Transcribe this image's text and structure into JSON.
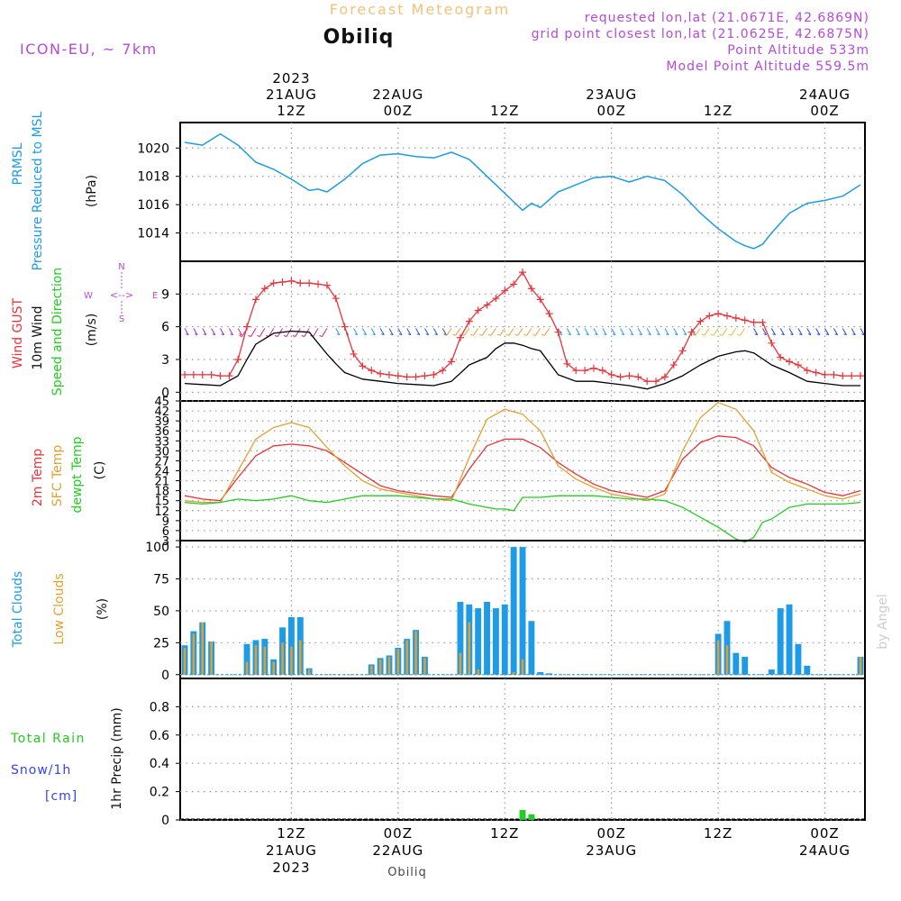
{
  "header": {
    "product_title": "Forecast Meteogram",
    "model": "ICON-EU, ~ 7km",
    "location": "Obiliq",
    "requested": "requested lon,lat (21.0671E, 42.6869N)",
    "grid_point": "grid point closest lon,lat (21.0625E, 42.6875N)",
    "point_altitude": "Point Altitude 533m",
    "model_point_altitude": "Model Point Altitude 559.5m"
  },
  "footer": {
    "location": "Obiliq",
    "credit": "by Angel"
  },
  "colors": {
    "pressure": "#1e9be6",
    "gust": "#e8333b",
    "wind": "#000000",
    "temp2m": "#e8333b",
    "sfc": "#e0a030",
    "dewpt": "#22cc22",
    "total_clouds": "#1e9be6",
    "low_clouds": "#e0a030",
    "rain": "#22cc22",
    "snow": "#3344ee",
    "header_purple": "#b44bd6",
    "title_orange": "#f0c27a"
  },
  "time_axis": {
    "start": "2023-08-21 00Z",
    "end": "2023-08-24 06Z",
    "step_hours": 1,
    "ticks_top": [
      {
        "hour": 12,
        "lines": [
          "2023",
          "21AUG",
          "12Z"
        ]
      },
      {
        "hour": 24,
        "lines": [
          "22AUG",
          "00Z"
        ]
      },
      {
        "hour": 36,
        "lines": [
          "12Z"
        ]
      },
      {
        "hour": 48,
        "lines": [
          "23AUG",
          "00Z"
        ]
      },
      {
        "hour": 60,
        "lines": [
          "12Z"
        ]
      },
      {
        "hour": 72,
        "lines": [
          "24AUG",
          "00Z"
        ]
      }
    ],
    "ticks_bottom": [
      {
        "hour": 12,
        "lines": [
          "12Z",
          "21AUG",
          "2023"
        ]
      },
      {
        "hour": 24,
        "lines": [
          "00Z",
          "22AUG"
        ]
      },
      {
        "hour": 36,
        "lines": [
          "12Z"
        ]
      },
      {
        "hour": 48,
        "lines": [
          "00Z",
          "23AUG"
        ]
      },
      {
        "hour": 60,
        "lines": [
          "12Z"
        ]
      },
      {
        "hour": 72,
        "lines": [
          "00Z",
          "24AUG"
        ]
      }
    ]
  },
  "chart_data": [
    {
      "type": "line",
      "panel": "pressure",
      "ylabels": [
        "PRMSL",
        "Pressure Reduced to MSL",
        "(hPa)"
      ],
      "yticks": [
        1014,
        1016,
        1018,
        1020
      ],
      "ylim": [
        1012.0,
        1021.8
      ],
      "grid": true,
      "series": [
        {
          "name": "PRMSL",
          "x": [
            0,
            2,
            4,
            6,
            8,
            10,
            12,
            13,
            14,
            15,
            16,
            18,
            20,
            22,
            24,
            26,
            28,
            30,
            32,
            34,
            36,
            37,
            38,
            39,
            40,
            42,
            44,
            46,
            48,
            50,
            52,
            54,
            56,
            58,
            60,
            62,
            63,
            64,
            65,
            66,
            68,
            70,
            72,
            74,
            76
          ],
          "values": [
            1020.4,
            1020.2,
            1021.0,
            1020.2,
            1019.0,
            1018.5,
            1017.8,
            1017.4,
            1017.0,
            1017.1,
            1016.9,
            1017.8,
            1018.9,
            1019.5,
            1019.6,
            1019.4,
            1019.3,
            1019.7,
            1019.2,
            1018.0,
            1016.8,
            1016.2,
            1015.6,
            1016.1,
            1015.8,
            1016.9,
            1017.4,
            1017.9,
            1018.0,
            1017.6,
            1018.0,
            1017.7,
            1016.7,
            1015.4,
            1014.3,
            1013.4,
            1013.1,
            1012.9,
            1013.2,
            1014.0,
            1015.4,
            1016.1,
            1016.3,
            1016.6,
            1017.4
          ]
        }
      ]
    },
    {
      "type": "line",
      "panel": "wind",
      "ylabels": [
        "Wind GUST",
        "10m Wind",
        "Speed and Direction",
        "(m/s)"
      ],
      "compass": [
        "N",
        "W",
        "E",
        "S"
      ],
      "yticks": [
        0,
        3,
        6,
        9
      ],
      "ylim": [
        -0.8,
        12
      ],
      "grid": true,
      "series": [
        {
          "name": "Wind GUST",
          "x": [
            0,
            1,
            2,
            3,
            4,
            5,
            6,
            7,
            8,
            9,
            10,
            11,
            12,
            13,
            14,
            15,
            16,
            17,
            18,
            19,
            20,
            21,
            22,
            23,
            24,
            25,
            26,
            27,
            28,
            29,
            30,
            31,
            32,
            33,
            34,
            35,
            36,
            37,
            38,
            39,
            40,
            41,
            42,
            43,
            44,
            45,
            46,
            47,
            48,
            49,
            50,
            51,
            52,
            53,
            54,
            55,
            56,
            57,
            58,
            59,
            60,
            61,
            62,
            63,
            64,
            65,
            66,
            67,
            68,
            69,
            70,
            71,
            72,
            73,
            74,
            75,
            76
          ],
          "values": [
            1.6,
            1.6,
            1.6,
            1.6,
            1.5,
            1.5,
            3.0,
            6.0,
            8.5,
            9.5,
            10.0,
            10.1,
            10.2,
            10.0,
            10.0,
            9.9,
            9.8,
            8.6,
            6.0,
            3.5,
            2.4,
            2.0,
            1.7,
            1.6,
            1.5,
            1.4,
            1.4,
            1.5,
            1.6,
            2.0,
            2.8,
            5.0,
            6.5,
            7.5,
            8.0,
            8.6,
            9.3,
            9.9,
            11.0,
            9.5,
            8.5,
            7.2,
            5.5,
            2.6,
            2.0,
            2.0,
            2.2,
            2.0,
            1.6,
            1.4,
            1.5,
            1.4,
            1.0,
            1.0,
            1.4,
            2.5,
            3.8,
            5.5,
            6.5,
            7.0,
            7.2,
            7.0,
            6.8,
            6.6,
            6.4,
            6.4,
            4.5,
            3.2,
            2.8,
            2.5,
            2.0,
            1.8,
            1.6,
            1.6,
            1.5,
            1.5,
            1.5
          ]
        },
        {
          "name": "10m Wind",
          "x": [
            0,
            2,
            4,
            6,
            7,
            8,
            10,
            12,
            14,
            15,
            16,
            17,
            18,
            20,
            22,
            24,
            26,
            28,
            30,
            32,
            34,
            35,
            36,
            37,
            38,
            39,
            40,
            42,
            44,
            46,
            48,
            50,
            52,
            54,
            56,
            58,
            60,
            62,
            63,
            64,
            66,
            68,
            70,
            72,
            74,
            76
          ],
          "values": [
            0.8,
            0.7,
            0.6,
            1.5,
            3.0,
            4.4,
            5.4,
            5.6,
            5.5,
            4.5,
            3.5,
            2.6,
            1.8,
            1.2,
            1.0,
            0.8,
            0.7,
            0.6,
            1.0,
            2.5,
            3.2,
            4.0,
            4.5,
            4.5,
            4.3,
            4.0,
            3.8,
            1.6,
            1.0,
            1.0,
            0.8,
            0.6,
            0.3,
            0.8,
            1.5,
            2.5,
            3.3,
            3.7,
            3.8,
            3.6,
            2.5,
            1.8,
            1.0,
            0.8,
            0.6,
            0.6
          ]
        }
      ]
    },
    {
      "type": "line",
      "panel": "temperature",
      "ylabels": [
        "2m Temp",
        "SFC Temp",
        "dewpt Temp",
        "(C)"
      ],
      "yticks": [
        3,
        6,
        9,
        12,
        15,
        18,
        21,
        24,
        27,
        30,
        33,
        36,
        39,
        42,
        45
      ],
      "ylim": [
        3,
        45
      ],
      "grid": true,
      "series": [
        {
          "name": "2m Temp",
          "x": [
            0,
            2,
            4,
            6,
            8,
            10,
            12,
            14,
            16,
            18,
            20,
            22,
            24,
            26,
            28,
            30,
            32,
            34,
            36,
            38,
            40,
            42,
            44,
            46,
            48,
            50,
            52,
            54,
            56,
            58,
            60,
            62,
            64,
            66,
            68,
            70,
            72,
            74,
            76
          ],
          "values": [
            16.5,
            15.5,
            15.0,
            22.0,
            28.5,
            31.5,
            32.0,
            31.5,
            30.0,
            26.5,
            23.0,
            19.5,
            18.0,
            17.2,
            16.5,
            16.0,
            24.5,
            31.5,
            33.5,
            33.5,
            31.0,
            26.5,
            23.0,
            20.0,
            18.0,
            17.0,
            16.0,
            18.0,
            27.5,
            32.5,
            34.5,
            34.0,
            31.5,
            25.0,
            22.0,
            20.0,
            17.5,
            16.5,
            18.0
          ]
        },
        {
          "name": "SFC Temp",
          "x": [
            0,
            2,
            4,
            6,
            8,
            10,
            12,
            14,
            16,
            18,
            20,
            22,
            24,
            26,
            28,
            30,
            32,
            34,
            36,
            38,
            40,
            42,
            44,
            46,
            48,
            50,
            52,
            54,
            56,
            58,
            60,
            62,
            64,
            66,
            68,
            70,
            72,
            74,
            76
          ],
          "values": [
            15.0,
            14.5,
            14.5,
            24.0,
            33.5,
            37.0,
            38.5,
            37.0,
            31.0,
            25.5,
            21.0,
            18.5,
            17.5,
            16.5,
            15.5,
            15.0,
            28.0,
            39.5,
            42.5,
            41.0,
            36.0,
            25.5,
            21.5,
            19.0,
            17.0,
            16.0,
            15.0,
            17.0,
            30.0,
            40.0,
            44.5,
            42.5,
            36.0,
            23.5,
            20.5,
            18.5,
            16.5,
            15.5,
            17.0
          ]
        },
        {
          "name": "dewpt Temp",
          "x": [
            0,
            2,
            4,
            6,
            8,
            10,
            12,
            14,
            16,
            18,
            20,
            22,
            24,
            26,
            28,
            30,
            32,
            34,
            35,
            36,
            37,
            38,
            40,
            42,
            44,
            46,
            48,
            50,
            52,
            54,
            56,
            58,
            60,
            62,
            63,
            64,
            65,
            66,
            68,
            70,
            72,
            74,
            76
          ],
          "values": [
            14.5,
            14.0,
            14.5,
            15.5,
            15.0,
            15.5,
            16.5,
            15.0,
            14.5,
            15.5,
            16.5,
            16.5,
            16.5,
            16.0,
            15.5,
            15.5,
            14.0,
            13.0,
            12.5,
            12.5,
            12.0,
            16.0,
            16.0,
            16.5,
            16.5,
            16.5,
            16.0,
            15.5,
            15.5,
            15.0,
            13.0,
            10.0,
            7.0,
            3.5,
            2.5,
            4.0,
            8.5,
            9.5,
            13.0,
            14.0,
            14.0,
            14.0,
            14.5
          ]
        }
      ]
    },
    {
      "type": "bar",
      "panel": "clouds",
      "ylabels": [
        "Total Clouds",
        "Low Clouds",
        "(%)"
      ],
      "yticks": [
        0,
        25,
        50,
        75,
        100
      ],
      "ylim": [
        -3,
        105
      ],
      "grid": true,
      "series": [
        {
          "name": "Total Clouds",
          "x": [
            0,
            1,
            2,
            3,
            7,
            8,
            9,
            10,
            11,
            12,
            13,
            14,
            15,
            21,
            22,
            23,
            24,
            25,
            26,
            27,
            31,
            32,
            33,
            34,
            35,
            36,
            37,
            38,
            39,
            40,
            41,
            42,
            60,
            61,
            62,
            63,
            66,
            67,
            68,
            69,
            70,
            76
          ],
          "values": [
            23,
            34,
            41,
            26,
            24,
            27,
            28,
            12,
            37,
            45,
            45,
            5,
            0,
            8,
            13,
            15,
            21,
            28,
            35,
            14,
            57,
            55,
            52,
            57,
            52,
            55,
            100,
            100,
            42,
            2,
            1,
            0,
            32,
            42,
            17,
            14,
            4,
            52,
            55,
            24,
            7,
            14
          ]
        },
        {
          "name": "Low Clouds",
          "x": [
            0,
            1,
            2,
            3,
            7,
            8,
            9,
            10,
            11,
            12,
            13,
            14,
            15,
            21,
            22,
            23,
            24,
            25,
            26,
            27,
            31,
            32,
            33,
            34,
            35,
            36,
            37,
            38,
            39,
            40,
            41,
            42,
            60,
            61,
            62,
            63,
            66,
            67,
            68,
            69,
            70,
            76
          ],
          "values": [
            21,
            32,
            41,
            26,
            10,
            23,
            22,
            10,
            25,
            22,
            27,
            4,
            0,
            7,
            12,
            14,
            20,
            27,
            34,
            13,
            17,
            41,
            4,
            0,
            0,
            0,
            2,
            12,
            0,
            0,
            0,
            0,
            27,
            23,
            0,
            0,
            0,
            0,
            0,
            0,
            0,
            14
          ]
        }
      ]
    },
    {
      "type": "bar",
      "panel": "precip",
      "ylabels": [
        "Total Rain",
        "Snow/1h",
        "[cm]",
        "1hr Precip (mm)"
      ],
      "yticks": [
        0,
        0.2,
        0.4,
        0.6,
        0.8
      ],
      "ytick_labels": [
        "0",
        "0.2",
        "0.4",
        "0.6",
        "0.8"
      ],
      "ylim": [
        0,
        1.0
      ],
      "grid": true,
      "series": [
        {
          "name": "Total Rain",
          "x": [
            38,
            39
          ],
          "values": [
            0.07,
            0.04
          ]
        },
        {
          "name": "Snow/1h",
          "x": [],
          "values": []
        }
      ]
    }
  ]
}
